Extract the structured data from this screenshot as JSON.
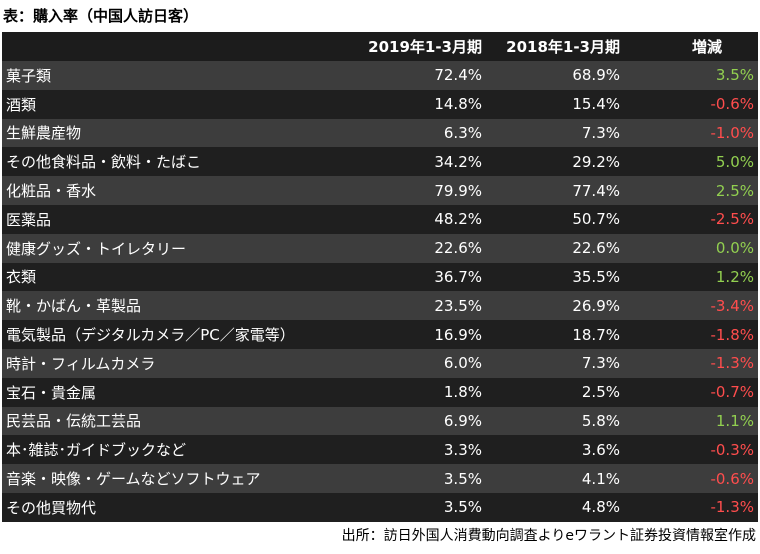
{
  "title": "表：購入率（中国人訪日客）",
  "header": {
    "name": "",
    "y2019": "2019年1-3月期",
    "y2018": "2018年1-3月期",
    "diff": "増減"
  },
  "rows": [
    {
      "name": "菓子類",
      "y2019": "72.4%",
      "y2018": "68.9%",
      "diff": "3.5%",
      "sign": "pos"
    },
    {
      "name": "酒類",
      "y2019": "14.8%",
      "y2018": "15.4%",
      "diff": "-0.6%",
      "sign": "neg"
    },
    {
      "name": "生鮮農産物",
      "y2019": "6.3%",
      "y2018": "7.3%",
      "diff": "-1.0%",
      "sign": "neg"
    },
    {
      "name": "その他食料品・飲料・たばこ",
      "y2019": "34.2%",
      "y2018": "29.2%",
      "diff": "5.0%",
      "sign": "pos"
    },
    {
      "name": "化粧品・香水",
      "y2019": "79.9%",
      "y2018": "77.4%",
      "diff": "2.5%",
      "sign": "pos"
    },
    {
      "name": "医薬品",
      "y2019": "48.2%",
      "y2018": "50.7%",
      "diff": "-2.5%",
      "sign": "neg"
    },
    {
      "name": "健康グッズ・トイレタリー",
      "y2019": "22.6%",
      "y2018": "22.6%",
      "diff": "0.0%",
      "sign": "zero"
    },
    {
      "name": "衣類",
      "y2019": "36.7%",
      "y2018": "35.5%",
      "diff": "1.2%",
      "sign": "pos"
    },
    {
      "name": "靴・かばん・革製品",
      "y2019": "23.5%",
      "y2018": "26.9%",
      "diff": "-3.4%",
      "sign": "neg"
    },
    {
      "name": "電気製品（デジタルカメラ／PC／家電等）",
      "y2019": "16.9%",
      "y2018": "18.7%",
      "diff": "-1.8%",
      "sign": "neg"
    },
    {
      "name": "時計・フィルムカメラ",
      "y2019": "6.0%",
      "y2018": "7.3%",
      "diff": "-1.3%",
      "sign": "neg"
    },
    {
      "name": "宝石・貴金属",
      "y2019": "1.8%",
      "y2018": "2.5%",
      "diff": "-0.7%",
      "sign": "neg"
    },
    {
      "name": "民芸品・伝統工芸品",
      "y2019": "6.9%",
      "y2018": "5.8%",
      "diff": "1.1%",
      "sign": "pos"
    },
    {
      "name": "本･雑誌･ガイドブックなど",
      "y2019": "3.3%",
      "y2018": "3.6%",
      "diff": "-0.3%",
      "sign": "neg"
    },
    {
      "name": "音楽・映像・ゲームなどソフトウェア",
      "y2019": "3.5%",
      "y2018": "4.1%",
      "diff": "-0.6%",
      "sign": "neg"
    },
    {
      "name": "その他買物代",
      "y2019": "3.5%",
      "y2018": "4.8%",
      "diff": "-1.3%",
      "sign": "neg"
    }
  ],
  "source": "出所：訪日外国人消費動向調査よりeワラント証券投資情報室作成",
  "colors": {
    "positive": "#92d050",
    "negative": "#ff4d4d",
    "row_dark": "#1f1f1f",
    "row_light": "#3d3d3d"
  }
}
